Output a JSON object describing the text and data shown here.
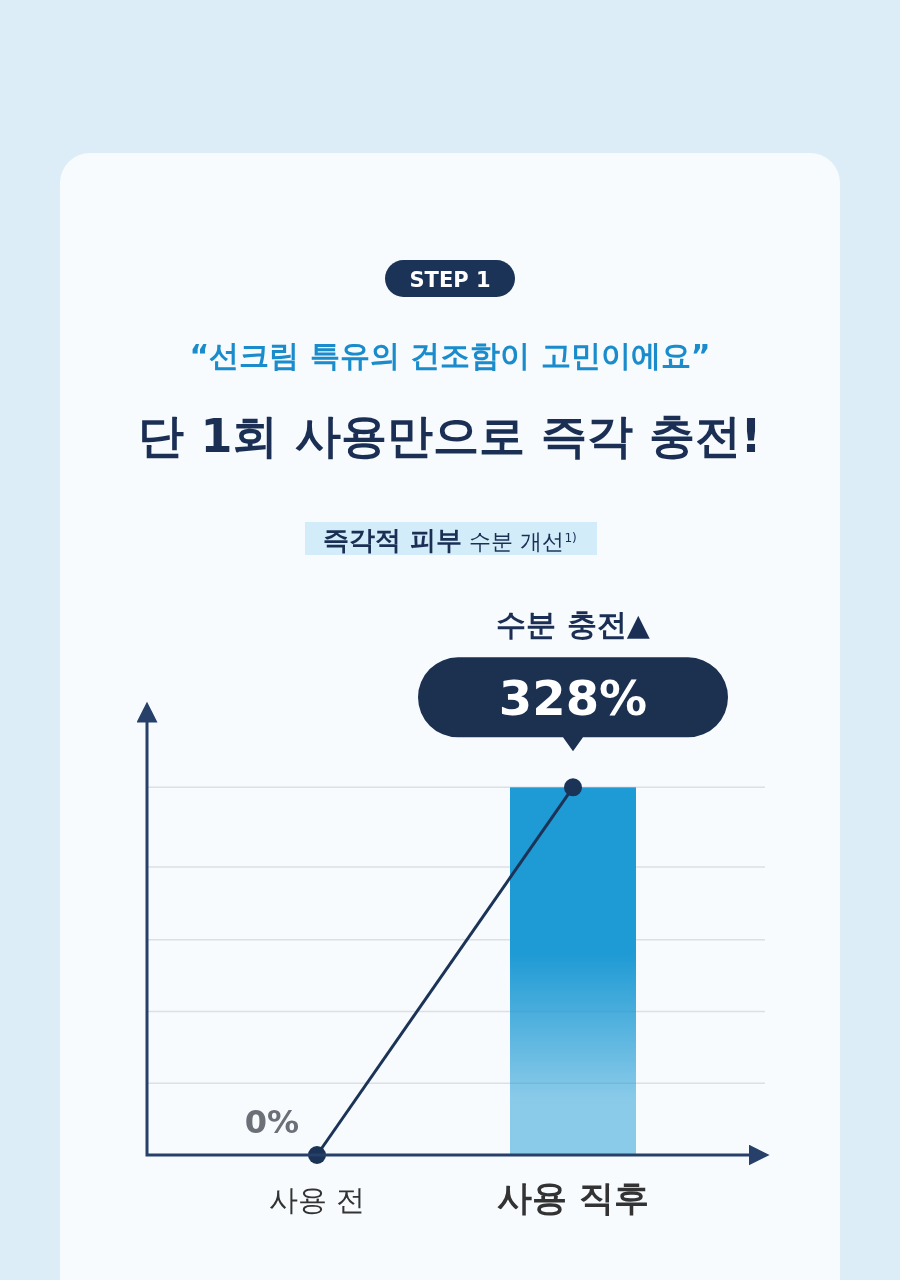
{
  "chart_data": {
    "type": "bar",
    "title": "단 1회 사용만으로 즉각 충전!",
    "subtitle": "“선크림 특유의 건조함이 고민이에요”",
    "annotations": [
      "STEP 1",
      "**즉각적 피부** 수분 개선$^{1)}$",
      "수분 충전▲"
    ],
    "categories": [
      "사용 전",
      "**사용 직후**"
    ],
    "series": [
      {
        "type": "bar",
        "color": "#1e9ad4",
        "values": [
          0,
          328
        ],
        "value_labels": [
          null,
          "328%"
        ]
      },
      {
        "type": "line",
        "color": "#1b3356",
        "values": [
          0,
          328
        ],
        "value_labels": [
          "0%",
          null
        ]
      }
    ],
    "ylim": [
      0,
      397
    ],
    "yticks": [
      {
        "value": 64,
        "label": null
      },
      {
        "value": 128,
        "label": null
      },
      {
        "value": 192,
        "label": null
      },
      {
        "value": 257,
        "label": null
      },
      {
        "value": 328,
        "label": null
      }
    ],
    "grid": "y",
    "marker": "circle",
    "tick_labels": "x"
  }
}
